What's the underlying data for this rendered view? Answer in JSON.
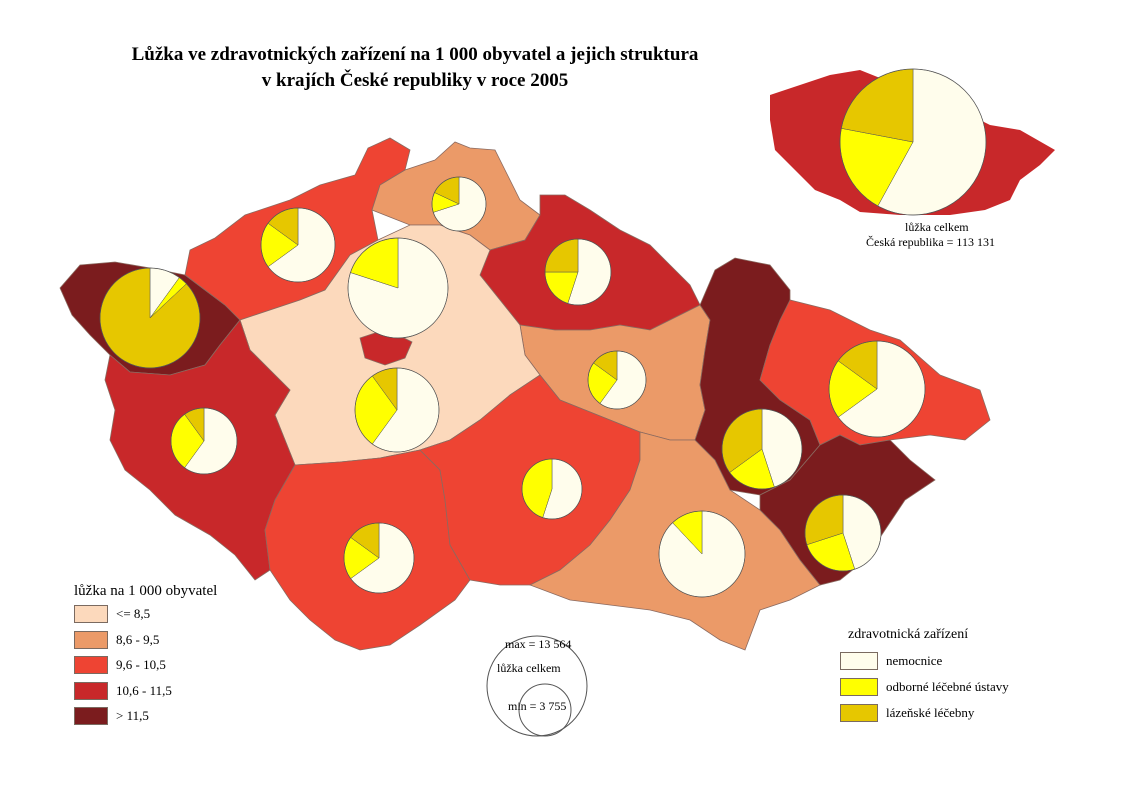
{
  "title_line1": "Lůžka ve zdravotnických zařízení na 1 000 obyvatel a jejich struktura",
  "title_line2": "v krajích České republiky v roce 2005",
  "choropleth_legend": {
    "title": "lůžka na 1 000 obyvatel",
    "classes": [
      {
        "label": "<= 8,5",
        "color": "#fcd9bc"
      },
      {
        "label": "8,6 - 9,5",
        "color": "#eb9a68"
      },
      {
        "label": "9,6 - 10,5",
        "color": "#ee4433"
      },
      {
        "label": "10,6 - 11,5",
        "color": "#c8282a"
      },
      {
        "label": "> 11,5",
        "color": "#7b1c1e"
      }
    ]
  },
  "size_legend": {
    "max": "max = 13 564",
    "label": "lůžka celkem",
    "min": "min = 3 755"
  },
  "pie_legend": {
    "title": "zdravotnická zařízení",
    "items": [
      {
        "label": "nemocnice",
        "color": "#fffdec"
      },
      {
        "label": "odborné léčebné ústavy",
        "color": "#ffff00"
      },
      {
        "label": "lázeňské léčebny",
        "color": "#e6c700"
      }
    ]
  },
  "inset": {
    "label": "lůžka celkem",
    "total": "Česká republika = 113 131",
    "class": 3,
    "shares": [
      0.58,
      0.2,
      0.22
    ]
  },
  "regions": [
    {
      "id": "karlovarsky",
      "class": 4,
      "shares": [
        0.1,
        0.03,
        0.87
      ]
    },
    {
      "id": "ustecky",
      "class": 2,
      "shares": [
        0.65,
        0.2,
        0.15
      ]
    },
    {
      "id": "liberecky",
      "class": 1,
      "shares": [
        0.7,
        0.12,
        0.18
      ]
    },
    {
      "id": "kralovehradecky",
      "class": 3,
      "shares": [
        0.55,
        0.2,
        0.25
      ]
    },
    {
      "id": "pardubicky",
      "class": 1,
      "shares": [
        0.6,
        0.25,
        0.15
      ]
    },
    {
      "id": "stredocesky",
      "class": 0,
      "shares": [
        0.6,
        0.3,
        0.1
      ]
    },
    {
      "id": "praha",
      "class": 3,
      "shares": [
        0.8,
        0.2,
        0
      ]
    },
    {
      "id": "plzensky",
      "class": 3,
      "shares": [
        0.6,
        0.3,
        0.1
      ]
    },
    {
      "id": "jihocesky",
      "class": 2,
      "shares": [
        0.65,
        0.2,
        0.15
      ]
    },
    {
      "id": "vysocina",
      "class": 2,
      "shares": [
        0.55,
        0.45,
        0
      ]
    },
    {
      "id": "jihomoravsky",
      "class": 1,
      "shares": [
        0.88,
        0.12,
        0
      ]
    },
    {
      "id": "olomoucky",
      "class": 4,
      "shares": [
        0.45,
        0.2,
        0.35
      ]
    },
    {
      "id": "moravskoslezsky",
      "class": 2,
      "shares": [
        0.65,
        0.2,
        0.15
      ]
    },
    {
      "id": "zlinsky",
      "class": 4,
      "shares": [
        0.45,
        0.25,
        0.3
      ]
    }
  ]
}
